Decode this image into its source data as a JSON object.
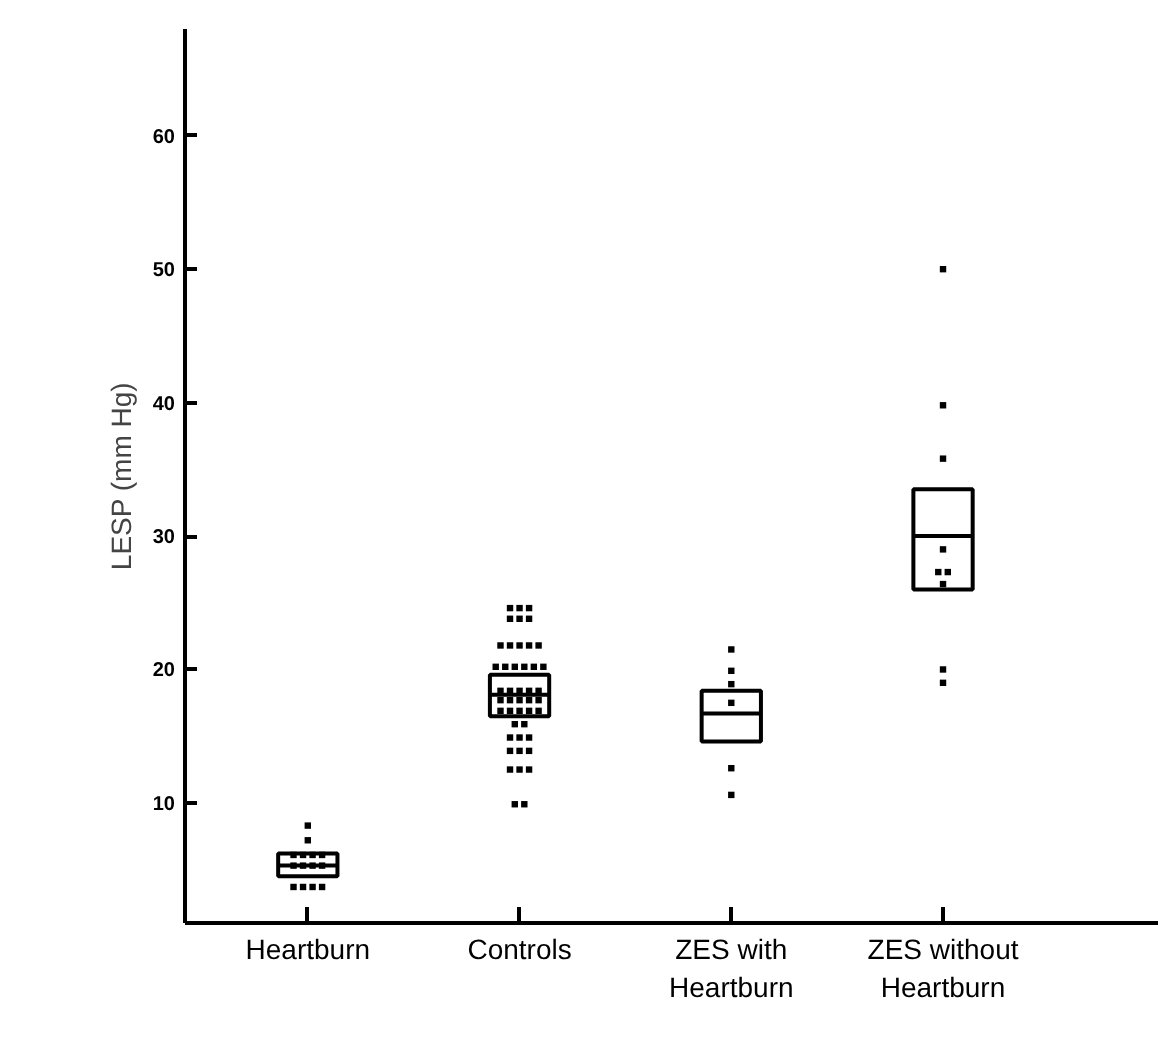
{
  "chart_data": {
    "type": "box",
    "ylabel": "LESP (mm Hg)",
    "categories": [
      "Heartburn",
      "Controls",
      "ZES with Heartburn",
      "ZES without Heartburn"
    ],
    "boxes": [
      {
        "low": 4.5,
        "q1": 4.5,
        "median": 5.3,
        "q3": 6.2,
        "high": 6.2
      },
      {
        "low": 16.5,
        "q1": 16.5,
        "median": 18.1,
        "q3": 19.6,
        "high": 19.6
      },
      {
        "low": 14.6,
        "q1": 14.6,
        "median": 16.7,
        "q3": 18.4,
        "high": 18.4
      },
      {
        "low": 26.0,
        "q1": 26.0,
        "median": 30.0,
        "q3": 33.5,
        "high": 33.5
      }
    ],
    "series": [
      {
        "type": "scatter",
        "color": "#000000",
        "x": [
          "Heartburn",
          "Heartburn",
          "Heartburn",
          "Heartburn",
          "Heartburn",
          "Heartburn",
          "Heartburn",
          "Heartburn",
          "Heartburn",
          "Heartburn",
          "Heartburn",
          "Heartburn",
          "Heartburn",
          "Heartburn"
        ],
        "values": [
          8.3,
          7.2,
          6.1,
          6.1,
          6.1,
          6.1,
          5.3,
          5.3,
          5.3,
          5.3,
          3.7,
          3.7,
          3.7,
          3.7
        ]
      },
      {
        "type": "scatter",
        "color": "#000000",
        "x": [
          "Controls",
          "Controls",
          "Controls",
          "Controls",
          "Controls",
          "Controls",
          "Controls",
          "Controls",
          "Controls",
          "Controls",
          "Controls",
          "Controls",
          "Controls",
          "Controls",
          "Controls",
          "Controls",
          "Controls",
          "Controls",
          "Controls",
          "Controls",
          "Controls",
          "Controls",
          "Controls",
          "Controls",
          "Controls",
          "Controls",
          "Controls",
          "Controls",
          "Controls",
          "Controls",
          "Controls",
          "Controls",
          "Controls",
          "Controls",
          "Controls",
          "Controls",
          "Controls",
          "Controls",
          "Controls",
          "Controls",
          "Controls",
          "Controls",
          "Controls",
          "Controls",
          "Controls"
        ],
        "values": [
          24.6,
          24.6,
          24.6,
          23.8,
          23.8,
          23.8,
          21.8,
          21.8,
          21.8,
          21.8,
          21.8,
          20.2,
          20.2,
          20.2,
          20.2,
          20.2,
          20.2,
          18.4,
          18.4,
          18.4,
          18.4,
          18.4,
          17.7,
          17.7,
          17.7,
          17.7,
          17.7,
          16.9,
          16.9,
          16.9,
          16.9,
          16.9,
          15.9,
          15.9,
          14.9,
          14.9,
          14.9,
          13.9,
          13.9,
          13.9,
          12.5,
          12.5,
          12.5,
          9.9,
          9.9
        ]
      },
      {
        "type": "scatter",
        "color": "#000000",
        "x": [
          "ZES with Heartburn",
          "ZES with Heartburn",
          "ZES with Heartburn",
          "ZES with Heartburn",
          "ZES with Heartburn",
          "ZES with Heartburn"
        ],
        "values": [
          21.5,
          19.9,
          18.9,
          17.5,
          12.6,
          10.6
        ]
      },
      {
        "type": "scatter",
        "color": "#000000",
        "x": [
          "ZES without Heartburn",
          "ZES without Heartburn",
          "ZES without Heartburn",
          "ZES without Heartburn",
          "ZES without Heartburn",
          "ZES without Heartburn",
          "ZES without Heartburn",
          "ZES without Heartburn",
          "ZES without Heartburn"
        ],
        "values": [
          50.0,
          39.8,
          35.8,
          29.0,
          27.3,
          27.3,
          26.4,
          20.0,
          19.0
        ]
      }
    ],
    "ylim": [
      1,
      68
    ],
    "yticks": [
      10,
      20,
      30,
      40,
      50,
      60
    ],
    "grid": false,
    "marker": "square"
  }
}
